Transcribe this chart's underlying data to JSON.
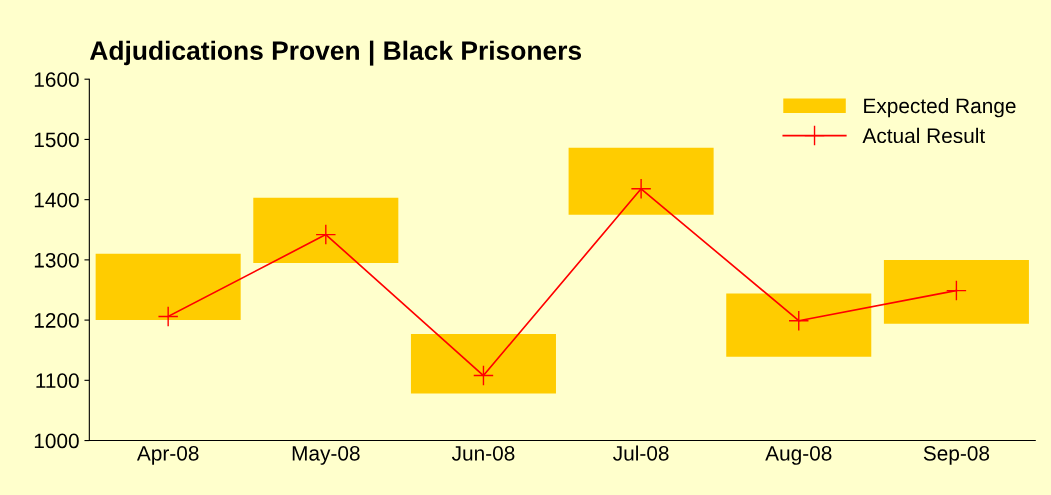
{
  "chart_data": {
    "type": "bar",
    "title": "Adjudications Proven | Black Prisoners",
    "categories": [
      "Apr-08",
      "May-08",
      "Jun-08",
      "Jul-08",
      "Aug-08",
      "Sep-08"
    ],
    "series": [
      {
        "name": "Expected Range",
        "color": "#ffcc00",
        "base": [
          1200,
          1295,
          1078,
          1375,
          1139,
          1194
        ],
        "values": [
          110,
          108,
          99,
          111,
          105,
          106
        ]
      },
      {
        "name": "Actual Result",
        "type": "line",
        "color": "#ff0000",
        "marker": "cross",
        "line_style": "solid",
        "values": [
          1206,
          1342,
          1108,
          1418,
          1199,
          1249
        ]
      }
    ],
    "ylim": [
      1000,
      1600
    ],
    "yticks": [
      1000,
      1100,
      1200,
      1300,
      1400,
      1500,
      1600
    ],
    "grid": false,
    "legend": "top right"
  }
}
